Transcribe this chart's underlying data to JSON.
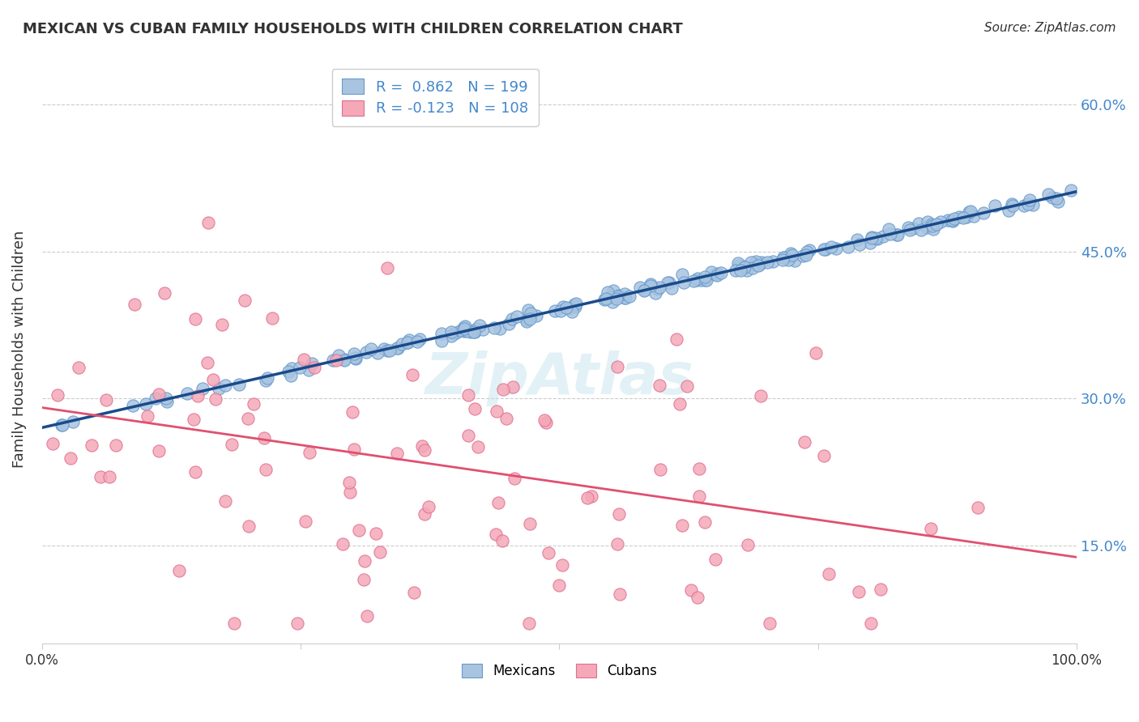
{
  "title": "MEXICAN VS CUBAN FAMILY HOUSEHOLDS WITH CHILDREN CORRELATION CHART",
  "source": "Source: ZipAtlas.com",
  "ylabel": "Family Households with Children",
  "xlabel_ticks": [
    "0.0%",
    "100.0%"
  ],
  "ytick_labels": [
    "15.0%",
    "30.0%",
    "45.0%",
    "60.0%"
  ],
  "ytick_values": [
    0.15,
    0.3,
    0.45,
    0.6
  ],
  "ymin": 0.05,
  "ymax": 0.65,
  "xmin": 0.0,
  "xmax": 1.0,
  "mexican_color": "#a8c4e0",
  "mexican_edge": "#6699cc",
  "mexican_line_color": "#1a4a8a",
  "cuban_color": "#f4a8b8",
  "cuban_edge": "#e07090",
  "cuban_line_color": "#e05070",
  "legend_r_mexican": "R =  0.862",
  "legend_n_mexican": "N = 199",
  "legend_r_cuban": "R = -0.123",
  "legend_n_cuban": "N = 108",
  "mexican_r": 0.862,
  "mexican_n": 199,
  "cuban_r": -0.123,
  "cuban_n": 108,
  "watermark": "ZipAtlas",
  "background_color": "#ffffff",
  "grid_color": "#cccccc",
  "axis_label_color": "#4488cc",
  "title_color": "#333333"
}
